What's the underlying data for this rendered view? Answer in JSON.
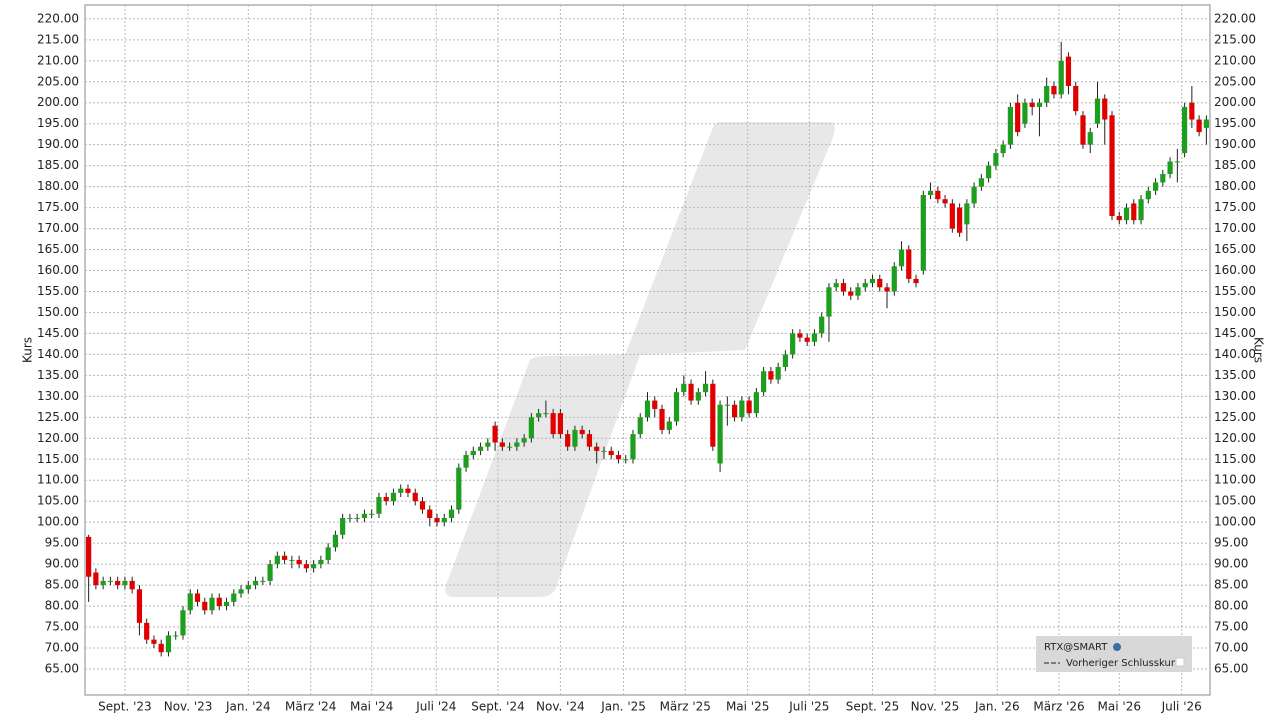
{
  "chart_data": {
    "type": "candlestick",
    "y_label": "Kurs",
    "legend": {
      "items": [
        "RTX@SMART",
        "Vorheriger Schlusskurs"
      ],
      "corner": "lower-right"
    },
    "up_color": "#1e9e1e",
    "down_color": "#e00000",
    "grid": true,
    "xlim": [
      -0.5,
      154.5
    ],
    "ylim": [
      58.8,
      223.3
    ],
    "xticks": [
      {
        "value": 5,
        "label": "Sept. '23"
      },
      {
        "value": 13.7,
        "label": "Nov. '23"
      },
      {
        "value": 22,
        "label": "Jan. '24"
      },
      {
        "value": 30.6,
        "label": "März '24"
      },
      {
        "value": 39,
        "label": "Mai '24"
      },
      {
        "value": 47.9,
        "label": "Juli '24"
      },
      {
        "value": 56.4,
        "label": "Sept. '24"
      },
      {
        "value": 65,
        "label": "Nov. '24"
      },
      {
        "value": 73.7,
        "label": "Jan. '25"
      },
      {
        "value": 82.2,
        "label": "März '25"
      },
      {
        "value": 90.8,
        "label": "Mai '25"
      },
      {
        "value": 99.3,
        "label": "Juli '25"
      },
      {
        "value": 108,
        "label": "Sept. '25"
      },
      {
        "value": 116.6,
        "label": "Nov. '25"
      },
      {
        "value": 125.2,
        "label": "Jan. '26"
      },
      {
        "value": 133.7,
        "label": "März '26"
      },
      {
        "value": 142,
        "label": "Mai '26"
      },
      {
        "value": 150.6,
        "label": "Juli '26"
      }
    ],
    "yticks": [
      {
        "value": 220,
        "label": "220.00"
      },
      {
        "value": 215,
        "label": "215.00"
      },
      {
        "value": 210,
        "label": "210.00"
      },
      {
        "value": 205,
        "label": "205.00"
      },
      {
        "value": 200,
        "label": "200.00"
      },
      {
        "value": 195,
        "label": "195.00"
      },
      {
        "value": 190,
        "label": "190.00"
      },
      {
        "value": 185,
        "label": "185.00"
      },
      {
        "value": 180,
        "label": "180.00"
      },
      {
        "value": 175,
        "label": "175.00"
      },
      {
        "value": 170,
        "label": "170.00"
      },
      {
        "value": 165,
        "label": "165.00"
      },
      {
        "value": 160,
        "label": "160.00"
      },
      {
        "value": 155,
        "label": "155.00"
      },
      {
        "value": 150,
        "label": "150.00"
      },
      {
        "value": 145,
        "label": "145.00"
      },
      {
        "value": 140,
        "label": "140.00"
      },
      {
        "value": 135,
        "label": "135.00"
      },
      {
        "value": 130,
        "label": "130.00"
      },
      {
        "value": 125,
        "label": "125.00"
      },
      {
        "value": 120,
        "label": "120.00"
      },
      {
        "value": 115,
        "label": "115.00"
      },
      {
        "value": 110,
        "label": "110.00"
      },
      {
        "value": 105,
        "label": "105.00"
      },
      {
        "value": 100,
        "label": "100.00"
      },
      {
        "value": 95,
        "label": "95.00"
      },
      {
        "value": 90,
        "label": "90.00"
      },
      {
        "value": 85,
        "label": "85.00"
      },
      {
        "value": 80,
        "label": "80.00"
      },
      {
        "value": 75,
        "label": "75.00"
      },
      {
        "value": 70,
        "label": "70.00"
      },
      {
        "value": 65,
        "label": "65.00"
      }
    ],
    "open": [
      96.5,
      88,
      85,
      86,
      86,
      85,
      86,
      84,
      76,
      72,
      71,
      69,
      73,
      73,
      79,
      83,
      81,
      79,
      82,
      80,
      81,
      83,
      84,
      85,
      86,
      86,
      90,
      92,
      91,
      91,
      90,
      89,
      90,
      91,
      94,
      97,
      101,
      101,
      101,
      102,
      102,
      106,
      105,
      107,
      108,
      107,
      105,
      103,
      101,
      100,
      101,
      103,
      113,
      116,
      117,
      118,
      123,
      119,
      118,
      118,
      119,
      120,
      125,
      126,
      126,
      126,
      121,
      118,
      122,
      121,
      118,
      117,
      117,
      116,
      115,
      115,
      121,
      125,
      129,
      127,
      122,
      124,
      131,
      133,
      129,
      131,
      133,
      114,
      128,
      128,
      125,
      129,
      126,
      131,
      136,
      134,
      137,
      140,
      145,
      144,
      143,
      145,
      149,
      156,
      157,
      155,
      154,
      156,
      157,
      158,
      156,
      155,
      161,
      165,
      158,
      160,
      178,
      179,
      177,
      176,
      175,
      171,
      176,
      180,
      182,
      185,
      188,
      190,
      200,
      195,
      200,
      199,
      200,
      204,
      202,
      211,
      204,
      197,
      190,
      195,
      201,
      197,
      173,
      172,
      176,
      172,
      177,
      179,
      181,
      183,
      186,
      188,
      200,
      196,
      194
    ],
    "high": [
      97,
      89,
      87,
      87,
      87,
      87,
      87,
      85,
      77,
      73,
      72,
      74,
      74,
      80,
      84,
      84,
      82,
      83,
      83,
      82,
      84,
      85,
      86,
      87,
      87,
      91,
      93,
      93,
      92,
      92,
      91,
      91,
      92,
      95,
      98,
      102,
      102,
      102,
      103,
      103,
      107,
      107,
      108,
      109,
      109,
      108,
      106,
      104,
      102,
      102,
      104,
      114,
      117,
      118,
      119,
      120,
      124,
      120,
      119,
      120,
      121,
      126,
      127,
      129,
      127,
      127,
      122,
      123,
      123,
      122,
      119,
      118,
      118,
      117,
      116,
      122,
      126,
      131,
      130,
      128,
      125,
      132,
      135,
      134,
      132,
      136,
      134,
      129,
      130,
      129,
      130,
      130,
      132,
      137,
      137,
      138,
      141,
      146,
      146,
      145,
      146,
      150,
      157,
      158,
      158,
      156,
      157,
      158,
      159,
      159,
      157,
      162,
      167,
      166,
      159,
      179,
      181,
      180,
      178,
      177,
      176,
      177,
      181,
      183,
      186,
      189,
      191,
      200,
      202,
      201,
      201,
      201,
      206,
      205,
      214.5,
      212,
      205,
      198,
      194,
      205,
      202,
      198,
      174,
      176,
      177,
      178,
      180,
      182,
      184,
      187,
      189,
      200,
      204,
      197,
      197
    ],
    "low": [
      81,
      84,
      84,
      85,
      84,
      84,
      83,
      73,
      71,
      70,
      68,
      68,
      72,
      72,
      78,
      80,
      78,
      78,
      79,
      79,
      80,
      82,
      83,
      84,
      85,
      85,
      89,
      90,
      89,
      89,
      88,
      88,
      89,
      90,
      93,
      96,
      100,
      100,
      100,
      101,
      101,
      104,
      104,
      106,
      106,
      104,
      102,
      99,
      99,
      99,
      100,
      102,
      112,
      115,
      116,
      117,
      117,
      117,
      117,
      117,
      118,
      119,
      124,
      125,
      120,
      120,
      117,
      117,
      120,
      117,
      114,
      115,
      115,
      114,
      114,
      114,
      120,
      124,
      125,
      121,
      121,
      123,
      130,
      128,
      128,
      130,
      117,
      112,
      123,
      124,
      124,
      125,
      125,
      130,
      133,
      133,
      136,
      139,
      143,
      142,
      142,
      144,
      143,
      155,
      154,
      153,
      153,
      155,
      156,
      155,
      151,
      154,
      160,
      157,
      156,
      159,
      177,
      176,
      175,
      169,
      168,
      167,
      175,
      179,
      181,
      184,
      187,
      189,
      192,
      194,
      197,
      192,
      199,
      201,
      201,
      202,
      197,
      189,
      188,
      194,
      190,
      172,
      171,
      171,
      171,
      171,
      176,
      178,
      180,
      182,
      181,
      187,
      194,
      192,
      190
    ],
    "close": [
      87,
      85,
      86,
      86,
      85,
      86,
      84,
      76,
      72,
      71,
      69,
      73,
      73,
      79,
      83,
      81,
      79,
      82,
      80,
      81,
      83,
      84,
      85,
      86,
      86,
      90,
      92,
      91,
      91,
      90,
      89,
      90,
      91,
      94,
      97,
      101,
      101,
      101,
      102,
      102,
      106,
      105,
      107,
      108,
      107,
      105,
      103,
      101,
      100,
      101,
      103,
      113,
      116,
      117,
      118,
      119,
      119,
      118,
      118,
      119,
      120,
      125,
      126,
      126,
      121,
      121,
      118,
      122,
      121,
      118,
      117,
      117,
      116,
      115,
      115,
      121,
      125,
      129,
      127,
      122,
      124,
      131,
      133,
      129,
      131,
      133,
      118,
      128,
      128,
      125,
      129,
      126,
      131,
      136,
      134,
      137,
      140,
      145,
      144,
      143,
      145,
      149,
      156,
      157,
      155,
      154,
      156,
      157,
      158,
      156,
      155,
      161,
      165,
      158,
      157,
      178,
      179,
      177,
      176,
      170,
      169,
      176,
      180,
      182,
      185,
      188,
      190,
      199,
      193,
      200,
      199,
      200,
      204,
      202,
      210,
      204,
      198,
      190,
      193,
      201,
      196,
      173,
      172,
      175,
      172,
      177,
      179,
      181,
      183,
      186,
      186,
      199,
      196,
      193,
      196
    ]
  }
}
